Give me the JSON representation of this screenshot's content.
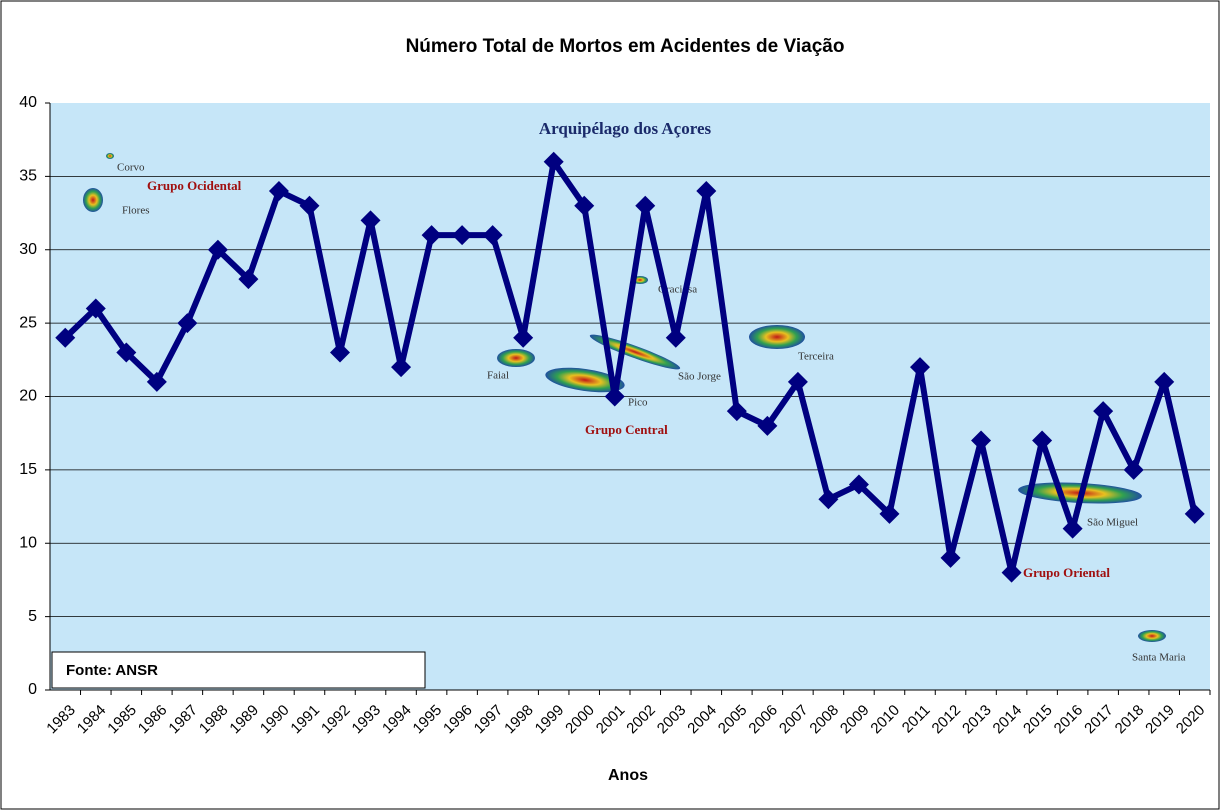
{
  "chart_data": {
    "type": "line",
    "title": "Número Total de Mortos em Acidentes de Viação",
    "x_label": "Anos",
    "source": "Fonte: ANSR",
    "categories": [
      "1983",
      "1984",
      "1985",
      "1986",
      "1987",
      "1988",
      "1989",
      "1990",
      "1991",
      "1992",
      "1993",
      "1994",
      "1995",
      "1996",
      "1997",
      "1998",
      "1999",
      "2000",
      "2001",
      "2002",
      "2003",
      "2004",
      "2005",
      "2006",
      "2007",
      "2008",
      "2009",
      "2010",
      "2011",
      "2012",
      "2013",
      "2014",
      "2015",
      "2016",
      "2017",
      "2018",
      "2019",
      "2020"
    ],
    "values": [
      24,
      26,
      23,
      21,
      25,
      30,
      28,
      34,
      33,
      23,
      32,
      22,
      31,
      31,
      31,
      24,
      36,
      33,
      20,
      33,
      24,
      34,
      19,
      18,
      21,
      13,
      14,
      12,
      22,
      9,
      17,
      8,
      17,
      11,
      19,
      15,
      21,
      12
    ],
    "color": "#000080",
    "ylim": [
      0,
      40
    ],
    "yticks": [
      0,
      5,
      10,
      15,
      20,
      25,
      30,
      35,
      40
    ],
    "grid": true,
    "annotations": [
      "Arquipélago dos Açores",
      "Corvo",
      "Grupo Ocidental",
      "Flores",
      "Graciosa",
      "Faial",
      "São Jorge",
      "Pico",
      "Grupo Central",
      "Terceira",
      "São Miguel",
      "Grupo Oriental",
      "Santa Maria"
    ]
  }
}
